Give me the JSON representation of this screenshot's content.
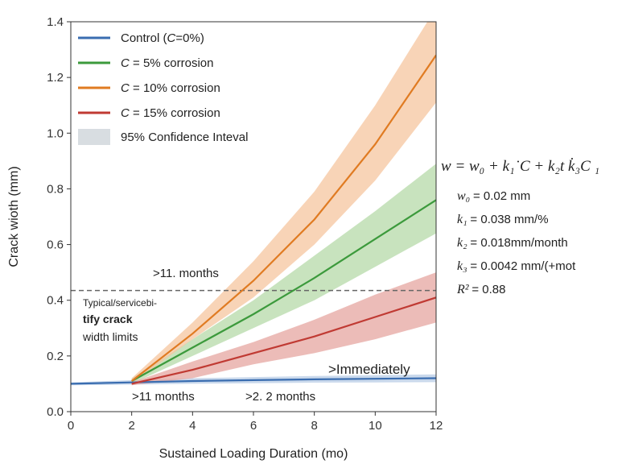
{
  "chart_data": {
    "type": "line",
    "xlabel": "Sustained Loading Duration (mo)",
    "ylabel": "Crack wioth (mm)",
    "xlim": [
      0,
      12
    ],
    "ylim": [
      0,
      1.4
    ],
    "xticks": [
      "0",
      "2",
      "4",
      "6",
      "8",
      "10",
      "12"
    ],
    "yticks": [
      "0.0",
      "0.2",
      "0.4",
      "0.6",
      "0.8",
      "1.0",
      "1.2",
      "1.4"
    ],
    "grid": false,
    "legend_position": "top-left",
    "confidence_label": "95% Confidence Inteval",
    "series": [
      {
        "name": "Control (C=0%)",
        "name_parts": [
          "Control (",
          "C",
          "=0%)"
        ],
        "color": "#3a6db0",
        "band_color": "#b8cce6",
        "x": [
          0,
          2,
          4,
          6,
          8,
          10,
          12
        ],
        "y": [
          0.1,
          0.105,
          0.11,
          0.113,
          0.116,
          0.118,
          0.12
        ],
        "lower": [
          0.095,
          0.097,
          0.1,
          0.102,
          0.104,
          0.105,
          0.106
        ],
        "upper": [
          0.105,
          0.113,
          0.12,
          0.124,
          0.128,
          0.131,
          0.134
        ]
      },
      {
        "name": "C = 5% corrosion",
        "name_parts": [
          "",
          "C",
          " = 5% corrosion"
        ],
        "color": "#3c9a3c",
        "band_color": "#b5d9a8",
        "x": [
          2,
          4,
          6,
          8,
          10,
          12
        ],
        "y": [
          0.11,
          0.23,
          0.35,
          0.48,
          0.62,
          0.76
        ],
        "lower": [
          0.1,
          0.2,
          0.3,
          0.4,
          0.52,
          0.64
        ],
        "upper": [
          0.12,
          0.26,
          0.4,
          0.56,
          0.72,
          0.89
        ]
      },
      {
        "name": "C = 10% corrosion",
        "name_parts": [
          "",
          "C",
          " = 10% corrosion"
        ],
        "color": "#e07b22",
        "band_color": "#f6c69f",
        "x": [
          2,
          4,
          6,
          8,
          10,
          12
        ],
        "y": [
          0.11,
          0.28,
          0.47,
          0.69,
          0.96,
          1.28
        ],
        "lower": [
          0.1,
          0.26,
          0.41,
          0.6,
          0.83,
          1.11
        ],
        "upper": [
          0.12,
          0.32,
          0.54,
          0.79,
          1.1,
          1.45
        ]
      },
      {
        "name": "C = 15% corrosion",
        "name_parts": [
          "",
          "C",
          " = 15% corrosion"
        ],
        "color": "#c03a33",
        "band_color": "#e6a5a0",
        "x": [
          2,
          4,
          6,
          8,
          10,
          12
        ],
        "y": [
          0.1,
          0.15,
          0.21,
          0.27,
          0.34,
          0.41
        ],
        "lower": [
          0.095,
          0.12,
          0.17,
          0.21,
          0.26,
          0.32
        ],
        "upper": [
          0.105,
          0.18,
          0.25,
          0.33,
          0.42,
          0.5
        ]
      }
    ],
    "threshold": {
      "y": 0.435,
      "color": "#666666"
    },
    "annotations": {
      "threshold_months": ">11. months",
      "limit_line1": "Typical/servicebi-",
      "limit_line2": "tify crack",
      "limit_line3": "width limits",
      "immediately": ">Immediately",
      "bottom_left": ">11 months",
      "bottom_right": ">2. 2 months"
    }
  },
  "equation": {
    "lhs": "w",
    "rhs": "= w₀ + k₁˙C + k₂t k̇₃C ₁",
    "params": [
      {
        "symbol": "w₀",
        "value": "= 0.02 mm"
      },
      {
        "symbol": "k₁",
        "value": "= 0.038 mm/%"
      },
      {
        "symbol": "k₂",
        "value": "= 0.018mm/month"
      },
      {
        "symbol": "k₃",
        "value": "= 0.0042 mm/(+mot"
      },
      {
        "symbol": "R²",
        "value": "= 0.88"
      }
    ]
  }
}
